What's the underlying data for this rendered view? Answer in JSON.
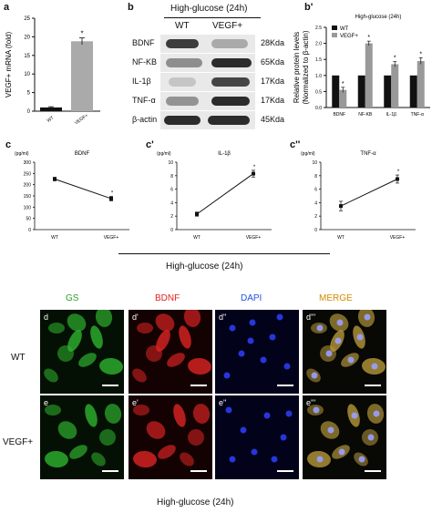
{
  "panels": {
    "a": "a",
    "b": "b",
    "b_prime": "b'",
    "c": "c",
    "c_prime": "c'",
    "c_dprime": "c''",
    "d": "d",
    "d_prime": "d'",
    "d_dprime": "d''",
    "d_tprime": "d'''",
    "e": "e",
    "e_prime": "e'",
    "e_dprime": "e''",
    "e_tprime": "e'''"
  },
  "western": {
    "title": "High-glucose  (24h)",
    "columns": [
      "WT",
      "VEGF+"
    ],
    "rows": [
      {
        "label": "BDNF",
        "size": "28Kda"
      },
      {
        "label": "NF-KB",
        "size": "65Kda"
      },
      {
        "label": "IL-1β",
        "size": "17Kda"
      },
      {
        "label": "TNF-α",
        "size": "17Kda"
      },
      {
        "label": "β-actin",
        "size": "45Kda"
      }
    ]
  },
  "c_group_title": "High-glucose (24h)",
  "micro": {
    "columns": [
      "GS",
      "BDNF",
      "DAPI",
      "MERGE"
    ],
    "column_colors": [
      "#2aa02a",
      "#e02020",
      "#2050e0",
      "#d08a00"
    ],
    "rows": [
      "WT",
      "VEGF+"
    ],
    "bottom_title": "High-glucose (24h)"
  },
  "chart_data": [
    {
      "id": "a",
      "type": "bar",
      "categories": [
        "WT",
        "VEGF+"
      ],
      "values": [
        1.0,
        18.8
      ],
      "errors": [
        0.2,
        0.9
      ],
      "ylabel": "VEGF+ mRNA (fold)",
      "ylim": [
        0,
        25
      ],
      "yticks": [
        0,
        5,
        10,
        15,
        20,
        25
      ],
      "annotations": [
        "*"
      ],
      "colors": [
        "#111111",
        "#aaaaaa"
      ]
    },
    {
      "id": "b_prime",
      "type": "bar",
      "title": "High-glucose (24h)",
      "ylabel": "Relative protein levels\n(Normalized to β-actin)",
      "categories": [
        "BDNF",
        "NF-KB",
        "IL-1β",
        "TNF-α"
      ],
      "ylim": [
        0,
        2.5
      ],
      "yticks": [
        0.0,
        0.5,
        1.0,
        1.5,
        2.0,
        2.5
      ],
      "legend": "top-left",
      "series": [
        {
          "name": "WT",
          "color": "#111111",
          "values": [
            1.0,
            1.0,
            1.0,
            1.0
          ],
          "errors": [
            0,
            0,
            0,
            0
          ]
        },
        {
          "name": "VEGF+",
          "color": "#999999",
          "values": [
            0.55,
            2.0,
            1.35,
            1.45
          ],
          "errors": [
            0.08,
            0.07,
            0.08,
            0.1
          ]
        }
      ],
      "annotations": [
        "*"
      ]
    },
    {
      "id": "c",
      "type": "line",
      "title": "BDNF",
      "unit": "(pg/ml)",
      "categories": [
        "WT",
        "VEGF+"
      ],
      "values": [
        225,
        138
      ],
      "errors": [
        8,
        10
      ],
      "ylim": [
        0,
        300
      ],
      "yticks": [
        0,
        50,
        100,
        150,
        200,
        250,
        300
      ],
      "annotations": [
        "*"
      ]
    },
    {
      "id": "c_prime",
      "type": "line",
      "title": "IL-1β",
      "unit": "(pg/ml)",
      "categories": [
        "WT",
        "VEGF+"
      ],
      "values": [
        2.3,
        8.3
      ],
      "errors": [
        0.3,
        0.5
      ],
      "ylim": [
        0,
        10
      ],
      "yticks": [
        0,
        2,
        4,
        6,
        8,
        10
      ],
      "annotations": [
        "*"
      ]
    },
    {
      "id": "c_dprime",
      "type": "line",
      "title": "TNF-α",
      "unit": "(pg/ml)",
      "categories": [
        "WT",
        "VEGF+"
      ],
      "values": [
        3.5,
        7.5
      ],
      "errors": [
        0.7,
        0.6
      ],
      "ylim": [
        0,
        10
      ],
      "yticks": [
        0,
        2,
        4,
        6,
        8,
        10
      ],
      "annotations": [
        "*"
      ]
    }
  ]
}
